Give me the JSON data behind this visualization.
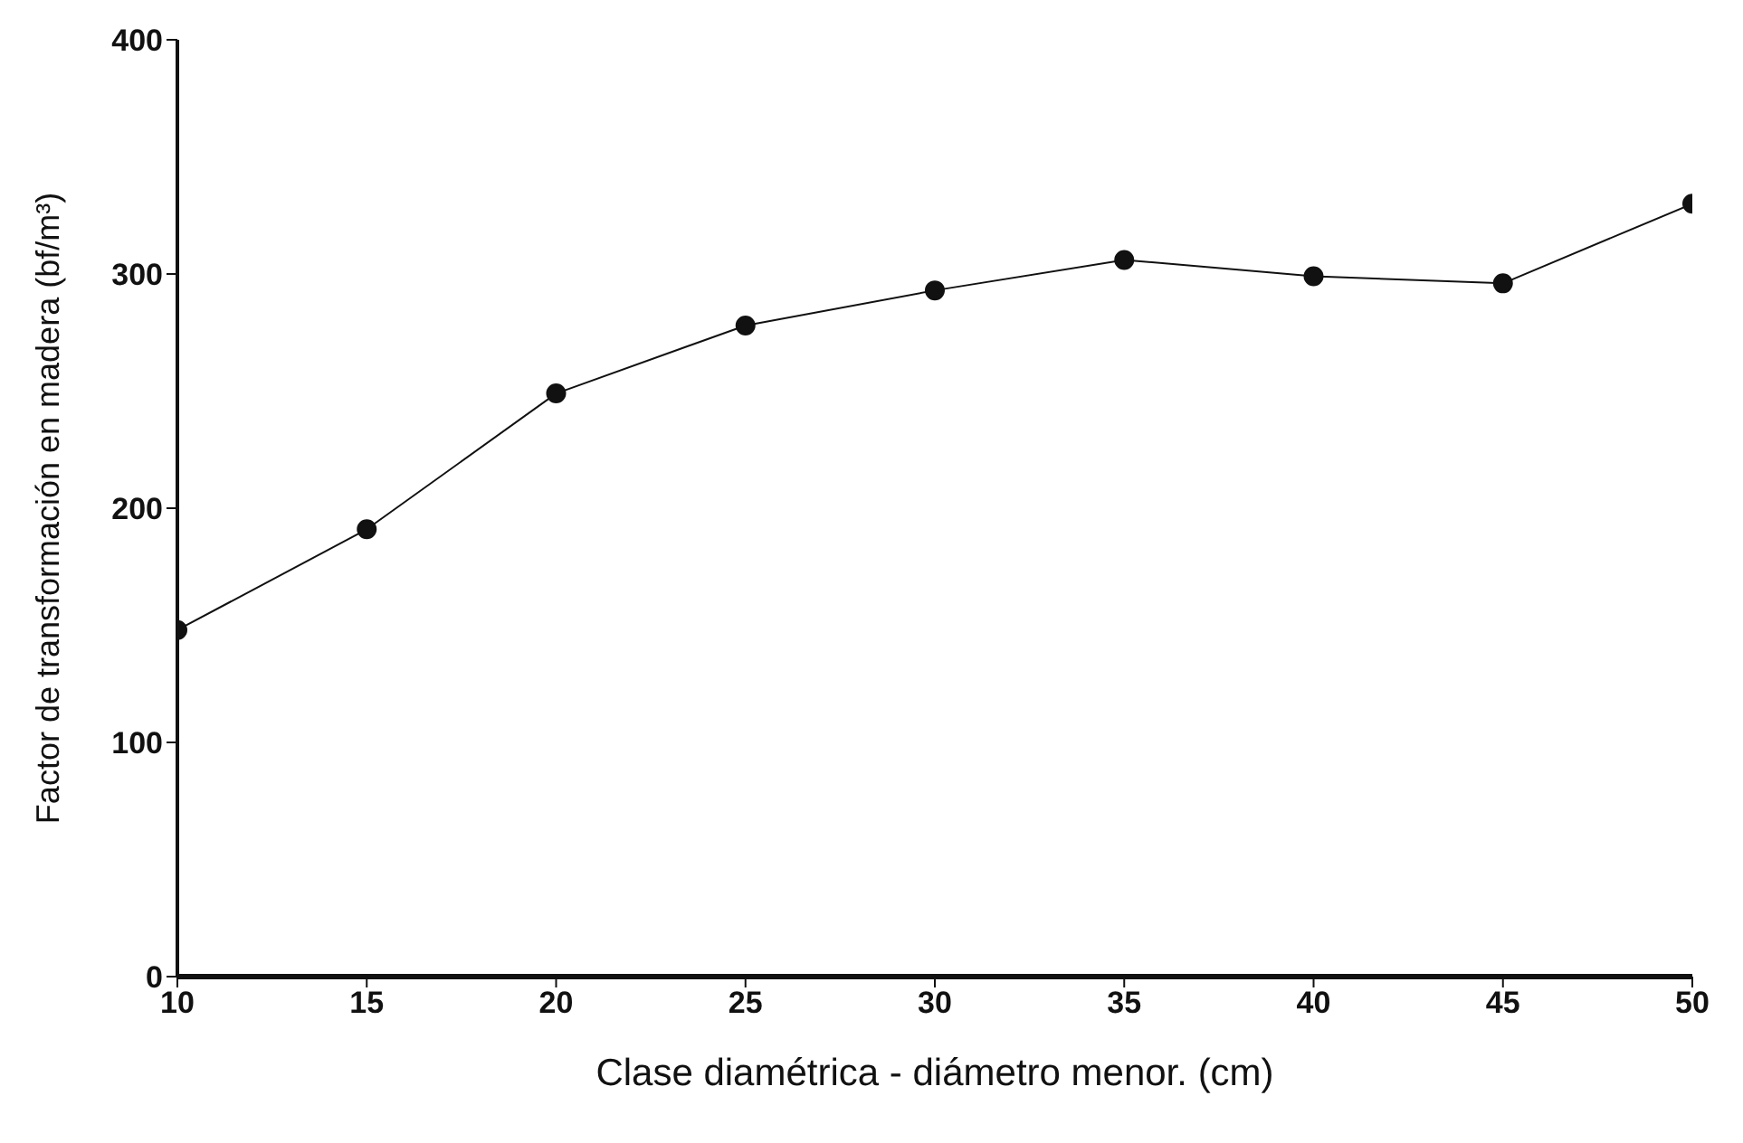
{
  "chart_data": {
    "type": "line",
    "xlabel": "Clase diamétrica - diámetro menor. (cm)",
    "ylabel": "Factor de transformación en madera (bf/m³)",
    "x": [
      10,
      15,
      20,
      25,
      30,
      35,
      40,
      45,
      50
    ],
    "values": [
      148,
      191,
      249,
      278,
      293,
      306,
      299,
      296,
      330
    ],
    "color": "#111111",
    "marker": "circle",
    "line_style": "solid",
    "grid": false,
    "legend": false,
    "xlim": [
      10,
      50
    ],
    "xticks": [
      10,
      15,
      20,
      25,
      30,
      35,
      40,
      45,
      50
    ],
    "ylim": [
      0,
      400
    ],
    "yticks": [
      0,
      100,
      200,
      300,
      400
    ]
  }
}
